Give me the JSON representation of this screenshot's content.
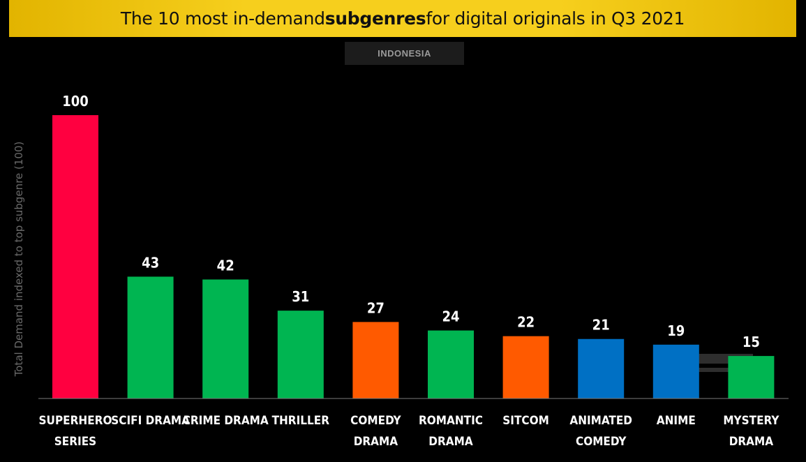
{
  "header": {
    "title_pre": "The 10 most in-demand ",
    "title_bold": "subgenres",
    "title_post": " for digital originals in Q3 2021",
    "subtitle": "INDONESIA"
  },
  "watermark": {
    "logo_icon": "parrot-analytics-logo"
  },
  "chart_data": {
    "type": "bar",
    "title": "The 10 most in-demand subgenres for digital originals in Q3 2021",
    "subtitle": "INDONESIA",
    "ylabel": "Total Demand indexed to top subgenre (100)",
    "xlabel": "",
    "ylim": [
      0,
      100
    ],
    "grid": false,
    "categories": [
      [
        "SUPERHERO",
        "SERIES"
      ],
      [
        "SCIFI DRAMA"
      ],
      [
        "CRIME DRAMA"
      ],
      [
        "THRILLER"
      ],
      [
        "COMEDY",
        "DRAMA"
      ],
      [
        "ROMANTIC",
        "DRAMA"
      ],
      [
        "SITCOM"
      ],
      [
        "ANIMATED",
        "COMEDY"
      ],
      [
        "ANIME"
      ],
      [
        "MYSTERY",
        "DRAMA"
      ]
    ],
    "values": [
      100,
      43,
      42,
      31,
      27,
      24,
      22,
      21,
      19,
      15
    ],
    "bar_colors": [
      "#ff0040",
      "#00b551",
      "#00b551",
      "#00b551",
      "#ff5a00",
      "#00b551",
      "#ff5a00",
      "#0070c4",
      "#0070c4",
      "#00b551"
    ],
    "data_labels": [
      "100",
      "43",
      "42",
      "31",
      "27",
      "24",
      "22",
      "21",
      "19",
      "15"
    ]
  }
}
